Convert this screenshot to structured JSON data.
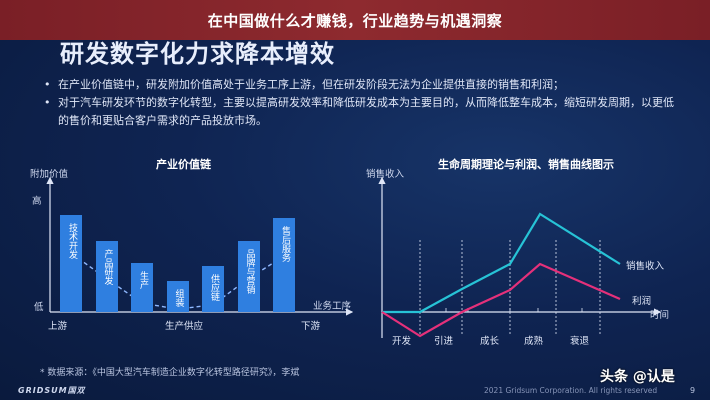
{
  "header": {
    "title": "在中国做什么才赚钱，行业趋势与机遇洞察"
  },
  "slide": {
    "title": "研发数字化力求降本增效",
    "bullets": [
      "在产业价值链中，研发附加价值高处于业务工序上游，但在研发阶段无法为企业提供直接的销售和利润；",
      "对于汽车研发环节的数字化转型，主要以提高研发效率和降低研发成本为主要目的，从而降低整车成本，缩短研发周期，以更低的售价和更贴合客户需求的产品投放市场。"
    ]
  },
  "chart_data": [
    {
      "type": "bar",
      "title": "产业价值链",
      "ylabel": "附加价值",
      "xlabel": "业务工序",
      "y_ticks": [
        "高",
        "低"
      ],
      "x_ticks": [
        "上游",
        "生产供应",
        "下游"
      ],
      "categories": [
        "技术开发",
        "产品研发",
        "生产",
        "组装",
        "供应链",
        "品牌与营销",
        "售后服务"
      ],
      "values": [
        95,
        70,
        48,
        30,
        45,
        70,
        92
      ],
      "ylim": [
        0,
        100
      ],
      "trend": "U-shaped dashed curve (smile curve)"
    },
    {
      "type": "line",
      "title": "生命周期理论与利润、销售曲线图示",
      "ylabel": "销售收入",
      "xlabel": "时间",
      "categories": [
        "开发",
        "引进",
        "成长",
        "成熟",
        "衰退"
      ],
      "ylim": [
        -20,
        100
      ],
      "series": [
        {
          "name": "销售收入",
          "color": "#27c3d6",
          "values": [
            0,
            5,
            40,
            90,
            45
          ]
        },
        {
          "name": "利润",
          "color": "#e5307a",
          "values": [
            -15,
            0,
            20,
            45,
            10
          ]
        }
      ]
    }
  ],
  "footer": {
    "source": "* 数据来源：《中国大型汽车制造企业数字化转型路径研究》，李斌",
    "logo": "GRIDSUM国双",
    "copyright": "2021 Gridsum Corporation. All rights reserved",
    "page": "9",
    "watermark": "头条 @认是"
  }
}
